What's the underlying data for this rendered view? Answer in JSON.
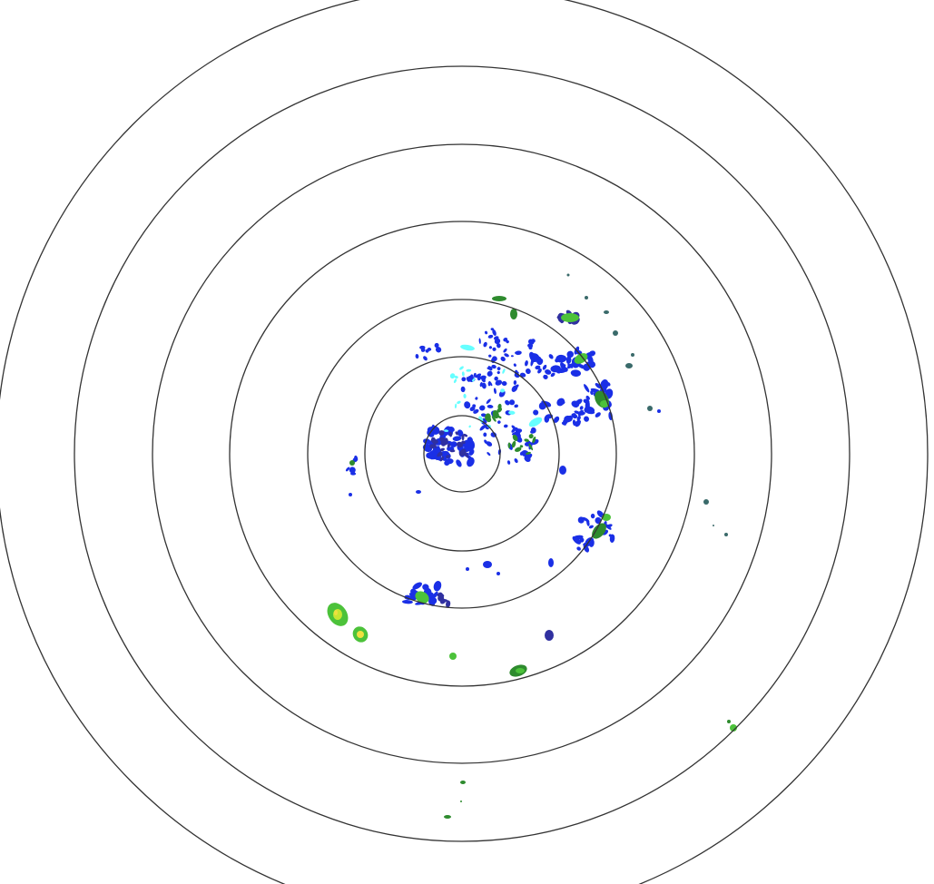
{
  "radar": {
    "ring_count": 7,
    "ring_color": "#333333",
    "background_color": "#ffffff",
    "echo_colors": {
      "very_light": "#66ffff",
      "light": "#1a2fe6",
      "light_dark": "#3030a0",
      "moderate": "#2e8b2e",
      "moderate_bright": "#4cc23a",
      "heavy": "#c8e632",
      "heavy_core": "#f0e040",
      "faint": "#3a6a6a"
    }
  }
}
